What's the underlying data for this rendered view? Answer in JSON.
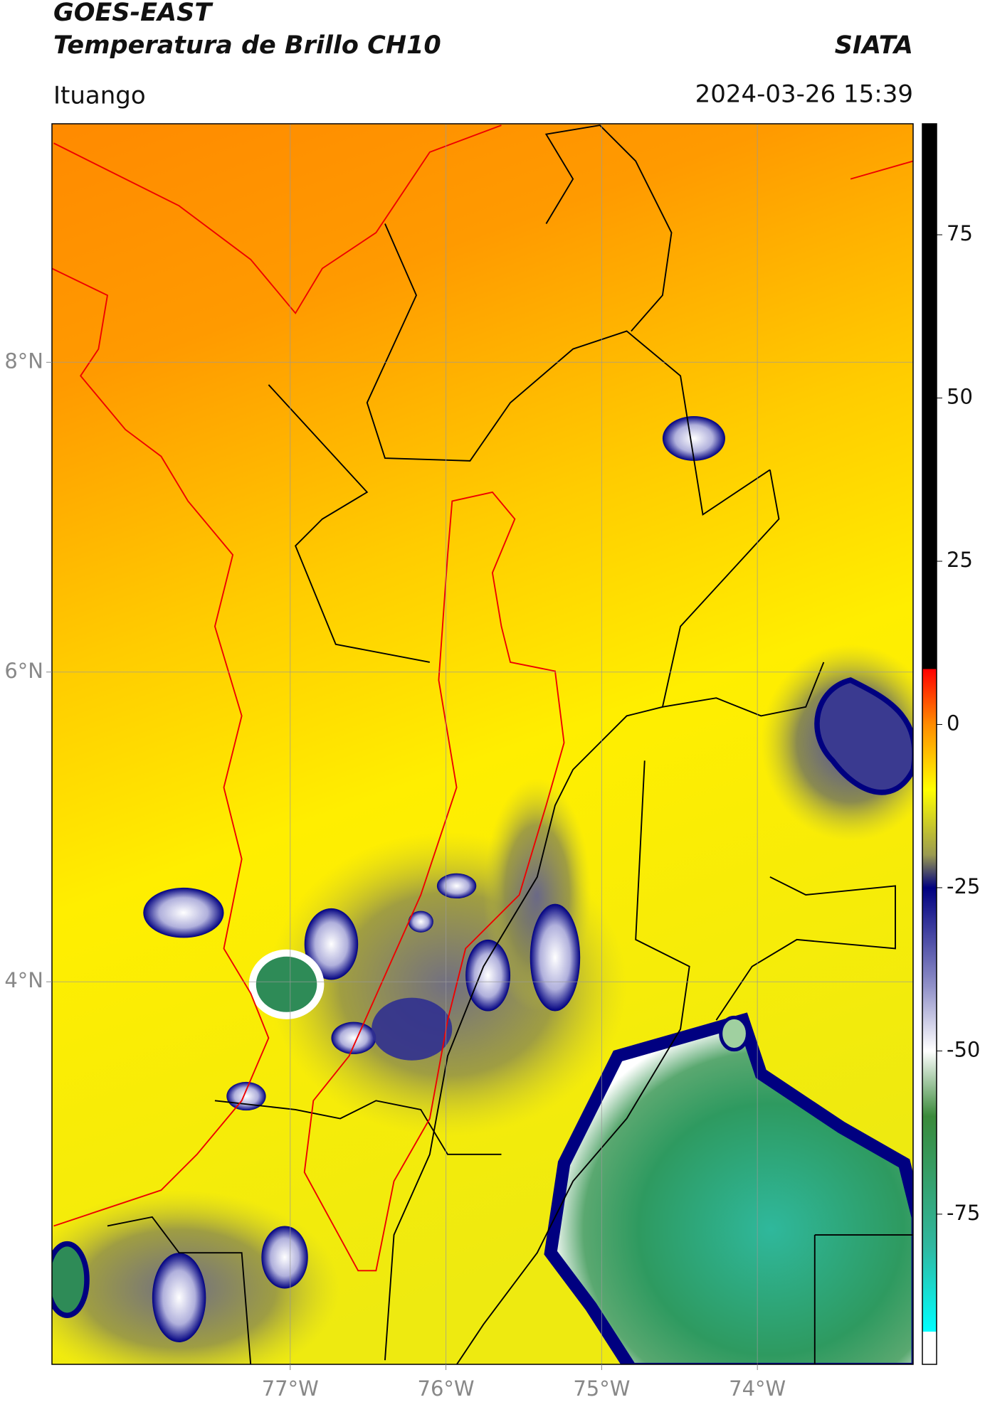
{
  "chart_data": {
    "type": "raster-map",
    "title": "GOES-EAST",
    "subtitle": "Temperatura de Brillo CH10",
    "source": "SIATA",
    "location": "Ituango",
    "datetime": "2024-03-26 15:39",
    "xlim": [
      -78.53,
      -73.0
    ],
    "ylim": [
      1.53,
      9.54
    ],
    "xticks": [
      {
        "value": -77,
        "label": "77°W"
      },
      {
        "value": -76,
        "label": "76°W"
      },
      {
        "value": -75,
        "label": "75°W"
      },
      {
        "value": -74,
        "label": "74°W"
      }
    ],
    "yticks": [
      {
        "value": 8,
        "label": "8°N"
      },
      {
        "value": 6,
        "label": "6°N"
      },
      {
        "value": 4,
        "label": "4°N"
      }
    ],
    "grid": true,
    "colorbar": {
      "clim": [
        -98,
        92
      ],
      "ticks": [
        75,
        50,
        25,
        0,
        -25,
        -50,
        -75
      ],
      "stops": [
        {
          "value": 92,
          "color": "#000000"
        },
        {
          "value": 8.5,
          "color": "#000000"
        },
        {
          "value": 8.5,
          "color": "#ff0000"
        },
        {
          "value": 0,
          "color": "#ff8c00"
        },
        {
          "value": -10,
          "color": "#ffff00"
        },
        {
          "value": -20,
          "color": "#9a9a50"
        },
        {
          "value": -25,
          "color": "#000080"
        },
        {
          "value": -40,
          "color": "#9090c8"
        },
        {
          "value": -50,
          "color": "#ffffff"
        },
        {
          "value": -60,
          "color": "#3a8a3a"
        },
        {
          "value": -80,
          "color": "#30b8a0"
        },
        {
          "value": -93,
          "color": "#00ffff"
        },
        {
          "value": -93,
          "color": "#ffffff"
        },
        {
          "value": -98,
          "color": "#ffffff"
        }
      ]
    }
  }
}
